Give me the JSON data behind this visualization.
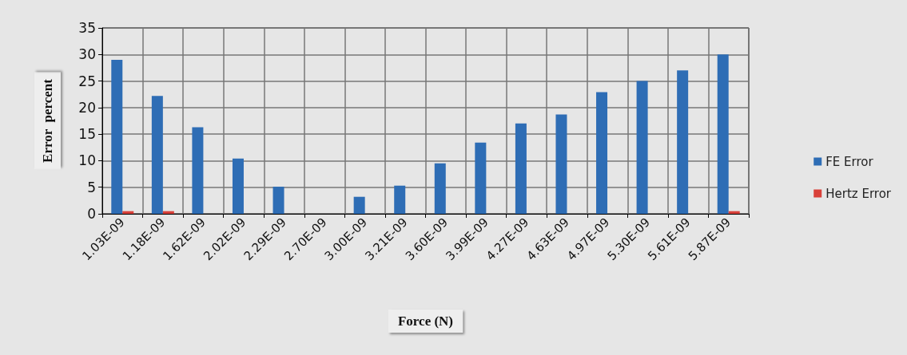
{
  "chart_data": {
    "type": "bar",
    "xlabel": "Force (N)",
    "ylabel": "Error  percent",
    "categories": [
      "1.03E-09",
      "1.18E-09",
      "1.62E-09",
      "2.02E-09",
      "2.29E-09",
      "2.70E-09",
      "3.00E-09",
      "3.21E-09",
      "3.60E-09",
      "3.99E-09",
      "4.27E-09",
      "4.63E-09",
      "4.97E-09",
      "5.30E-09",
      "5.61E-09",
      "5.87E-09"
    ],
    "series": [
      {
        "name": "FE Error",
        "color": "#2e6db5",
        "values": [
          29,
          22.2,
          16.3,
          10.4,
          5.1,
          0,
          3.2,
          5.3,
          9.5,
          13.4,
          17,
          18.7,
          22.9,
          25,
          27,
          30
        ]
      },
      {
        "name": "Hertz Error",
        "color": "#d9413a",
        "values": [
          0.5,
          0.5,
          0,
          0,
          0,
          0,
          0,
          0,
          0,
          0,
          0,
          0,
          0,
          0,
          0,
          0.5
        ]
      }
    ],
    "ylim": [
      0,
      35
    ],
    "yticks": [
      0,
      5,
      10,
      15,
      20,
      25,
      30,
      35
    ],
    "grid": true,
    "legend": "right"
  }
}
